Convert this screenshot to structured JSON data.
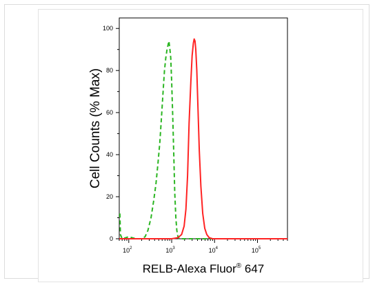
{
  "chart_data": {
    "type": "line",
    "xlabel_main": "RELB-Alexa Fluor",
    "xlabel_sup": "®",
    "xlabel_tail": " 647",
    "ylabel": "Cell Counts (% Max)",
    "xscale": "log",
    "xlim": [
      60,
      500000
    ],
    "ylim": [
      0,
      105
    ],
    "y_ticks": [
      "0",
      "20",
      "40",
      "60",
      "80",
      "100"
    ],
    "x_ticks": [
      {
        "base": "10",
        "exp": "2",
        "value": 100
      },
      {
        "base": "10",
        "exp": "3",
        "value": 1000
      },
      {
        "base": "10",
        "exp": "4",
        "value": 10000
      },
      {
        "base": "10",
        "exp": "5",
        "value": 100000
      }
    ],
    "grid": false,
    "series": [
      {
        "color": "#2ab521",
        "style": "dashed",
        "points": [
          [
            62,
            12
          ],
          [
            64,
            2
          ],
          [
            70,
            0
          ],
          [
            85,
            0.5
          ],
          [
            100,
            1
          ],
          [
            120,
            0.5
          ],
          [
            150,
            0
          ],
          [
            200,
            0
          ],
          [
            240,
            1
          ],
          [
            280,
            4
          ],
          [
            330,
            10
          ],
          [
            380,
            18
          ],
          [
            430,
            26
          ],
          [
            480,
            36
          ],
          [
            530,
            46
          ],
          [
            580,
            58
          ],
          [
            630,
            70
          ],
          [
            680,
            80
          ],
          [
            730,
            86
          ],
          [
            780,
            90
          ],
          [
            820,
            92
          ],
          [
            860,
            94
          ],
          [
            900,
            91
          ],
          [
            950,
            86
          ],
          [
            1000,
            75
          ],
          [
            1060,
            58
          ],
          [
            1120,
            40
          ],
          [
            1180,
            22
          ],
          [
            1250,
            10
          ],
          [
            1320,
            4
          ],
          [
            1400,
            1
          ],
          [
            1500,
            0
          ],
          [
            2000,
            0
          ],
          [
            10000,
            0
          ],
          [
            100000,
            0
          ],
          [
            500000,
            0
          ]
        ]
      },
      {
        "color": "#ff2222",
        "style": "solid",
        "points": [
          [
            60,
            0
          ],
          [
            500,
            0
          ],
          [
            1000,
            0
          ],
          [
            1400,
            0.5
          ],
          [
            1700,
            2
          ],
          [
            1950,
            6
          ],
          [
            2150,
            14
          ],
          [
            2350,
            30
          ],
          [
            2550,
            55
          ],
          [
            2800,
            75
          ],
          [
            3000,
            87
          ],
          [
            3200,
            93
          ],
          [
            3350,
            95
          ],
          [
            3500,
            94
          ],
          [
            3650,
            90
          ],
          [
            3850,
            80
          ],
          [
            4100,
            62
          ],
          [
            4400,
            42
          ],
          [
            4800,
            25
          ],
          [
            5300,
            12
          ],
          [
            5900,
            5
          ],
          [
            6600,
            2
          ],
          [
            7500,
            0.5
          ],
          [
            9000,
            0
          ],
          [
            50000,
            0
          ],
          [
            500000,
            0
          ]
        ]
      }
    ]
  }
}
